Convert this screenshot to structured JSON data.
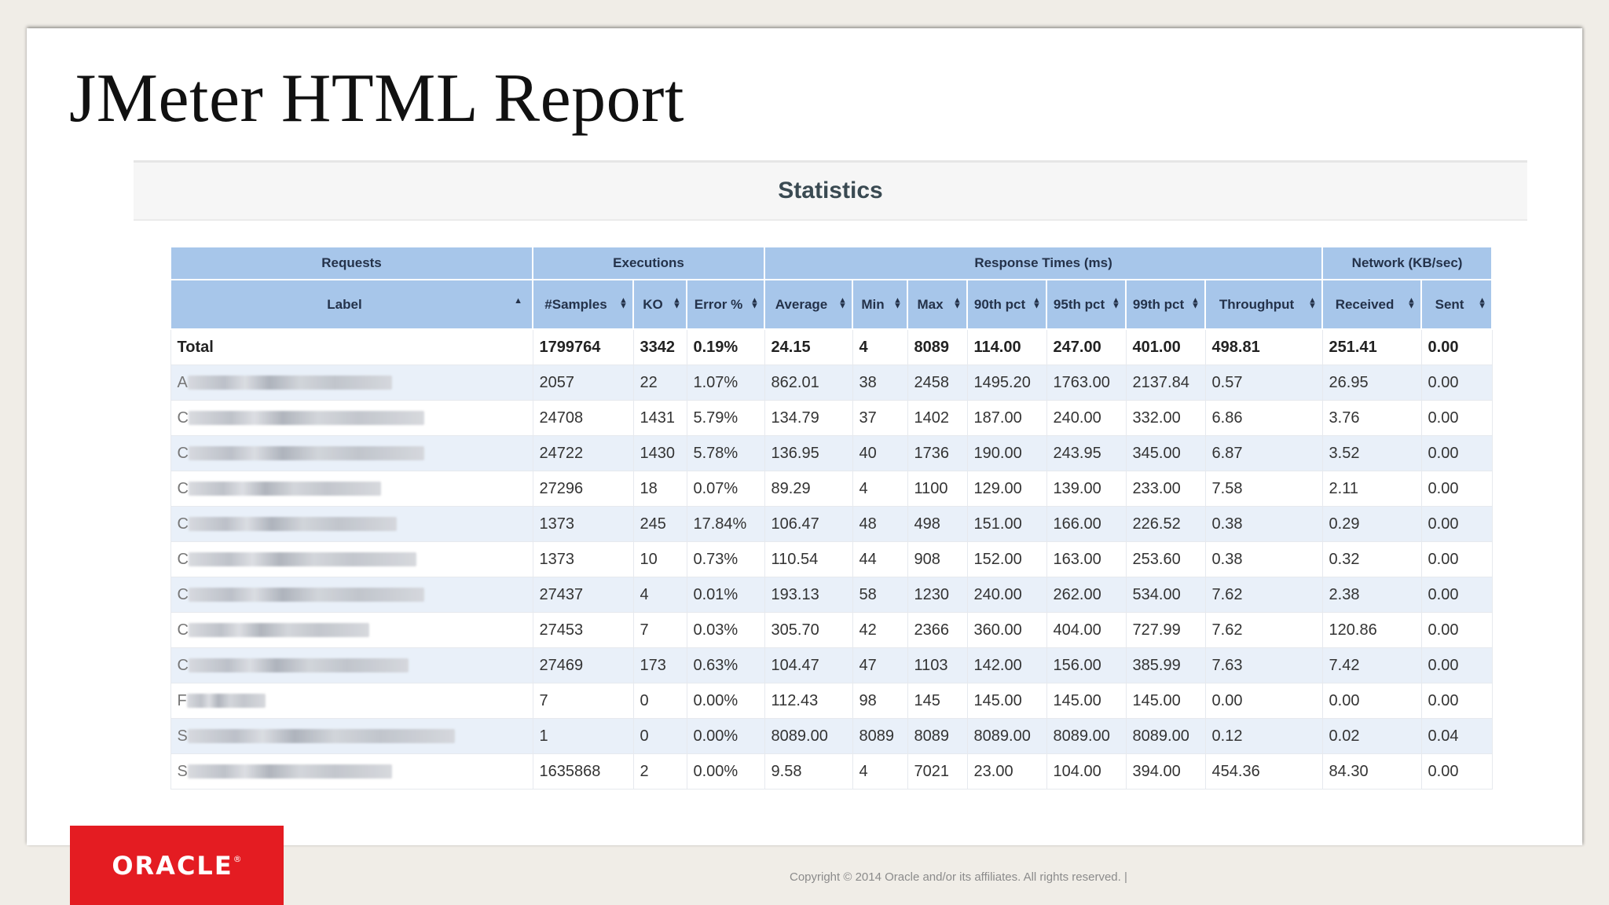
{
  "slide": {
    "title": "JMeter HTML Report",
    "copyright": "Copyright © 2014 Oracle and/or its affiliates. All rights reserved.  |",
    "logo_text": "ORACLE",
    "logo_mark": "®"
  },
  "report": {
    "section_title": "Statistics",
    "groups": [
      "Requests",
      "Executions",
      "Response Times (ms)",
      "Network (KB/sec)"
    ],
    "columns": [
      "Label",
      "#Samples",
      "KO",
      "Error %",
      "Average",
      "Min",
      "Max",
      "90th pct",
      "95th pct",
      "99th pct",
      "Throughput",
      "Received",
      "Sent"
    ],
    "total_row": [
      "Total",
      "1799764",
      "3342",
      "0.19%",
      "24.15",
      "4",
      "8089",
      "114.00",
      "247.00",
      "401.00",
      "498.81",
      "251.41",
      "0.00"
    ],
    "rows": [
      [
        "2057",
        "22",
        "1.07%",
        "862.01",
        "38",
        "2458",
        "1495.20",
        "1763.00",
        "2137.84",
        "0.57",
        "26.95",
        "0.00"
      ],
      [
        "24708",
        "1431",
        "5.79%",
        "134.79",
        "37",
        "1402",
        "187.00",
        "240.00",
        "332.00",
        "6.86",
        "3.76",
        "0.00"
      ],
      [
        "24722",
        "1430",
        "5.78%",
        "136.95",
        "40",
        "1736",
        "190.00",
        "243.95",
        "345.00",
        "6.87",
        "3.52",
        "0.00"
      ],
      [
        "27296",
        "18",
        "0.07%",
        "89.29",
        "4",
        "1100",
        "129.00",
        "139.00",
        "233.00",
        "7.58",
        "2.11",
        "0.00"
      ],
      [
        "1373",
        "245",
        "17.84%",
        "106.47",
        "48",
        "498",
        "151.00",
        "166.00",
        "226.52",
        "0.38",
        "0.29",
        "0.00"
      ],
      [
        "1373",
        "10",
        "0.73%",
        "110.54",
        "44",
        "908",
        "152.00",
        "163.00",
        "253.60",
        "0.38",
        "0.32",
        "0.00"
      ],
      [
        "27437",
        "4",
        "0.01%",
        "193.13",
        "58",
        "1230",
        "240.00",
        "262.00",
        "534.00",
        "7.62",
        "2.38",
        "0.00"
      ],
      [
        "27453",
        "7",
        "0.03%",
        "305.70",
        "42",
        "2366",
        "360.00",
        "404.00",
        "727.99",
        "7.62",
        "120.86",
        "0.00"
      ],
      [
        "27469",
        "173",
        "0.63%",
        "104.47",
        "47",
        "1103",
        "142.00",
        "156.00",
        "385.99",
        "7.63",
        "7.42",
        "0.00"
      ],
      [
        "7",
        "0",
        "0.00%",
        "112.43",
        "98",
        "145",
        "145.00",
        "145.00",
        "145.00",
        "0.00",
        "0.00",
        "0.00"
      ],
      [
        "1",
        "0",
        "0.00%",
        "8089.00",
        "8089",
        "8089",
        "8089.00",
        "8089.00",
        "8089.00",
        "0.12",
        "0.02",
        "0.04"
      ],
      [
        "1635868",
        "2",
        "0.00%",
        "9.58",
        "4",
        "7021",
        "23.00",
        "104.00",
        "394.00",
        "454.36",
        "84.30",
        "0.00"
      ]
    ],
    "label_initials": [
      "A",
      "C",
      "C",
      "C",
      "C",
      "C",
      "C",
      "C",
      "C",
      "F",
      "S",
      "S"
    ]
  }
}
